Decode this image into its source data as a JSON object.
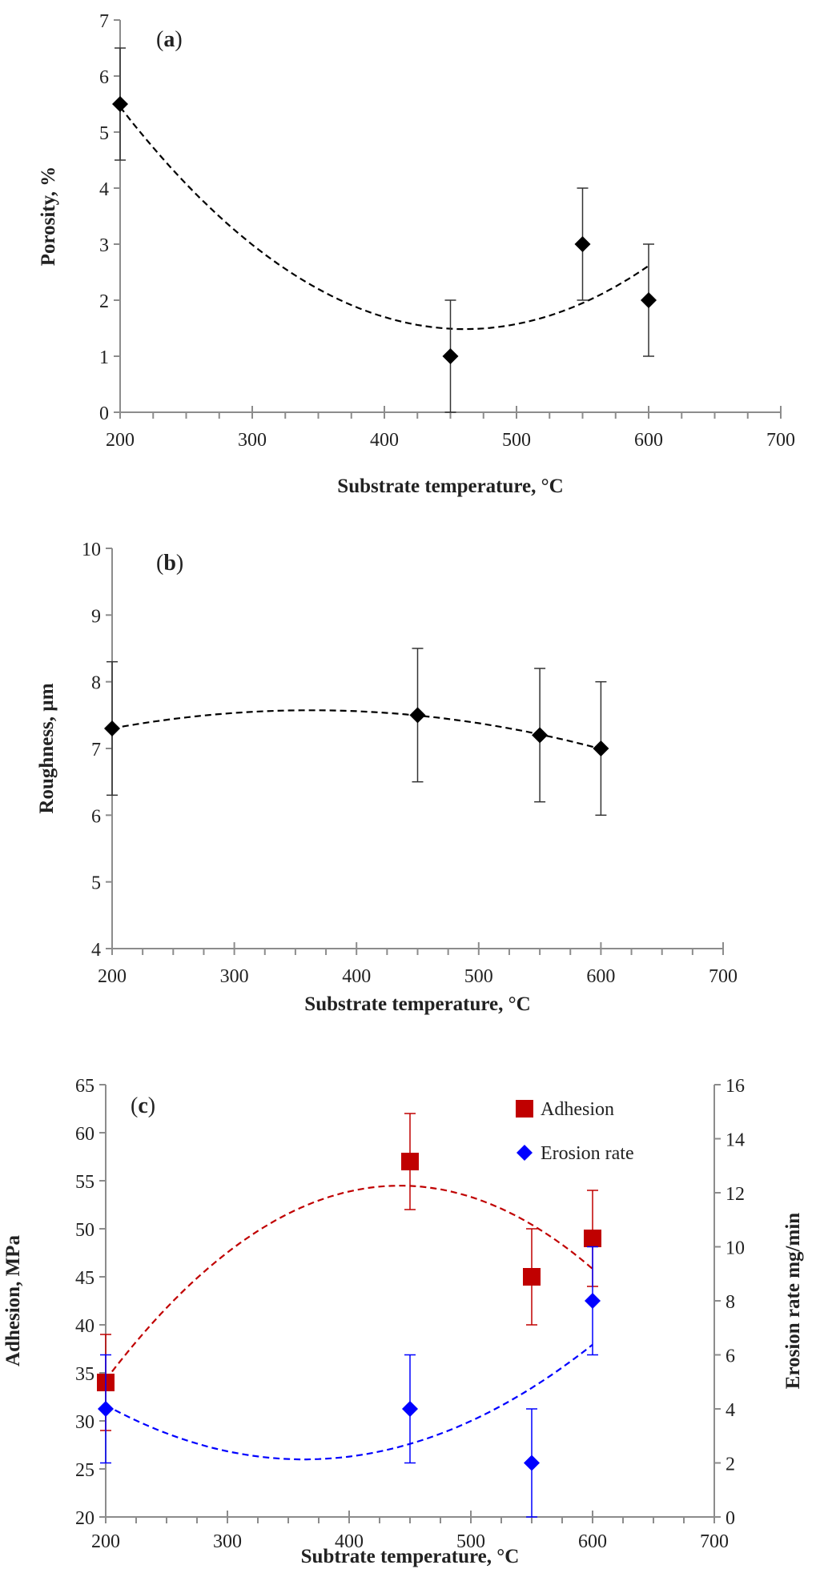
{
  "chart_data": [
    {
      "type": "scatter",
      "panel_label": "(a)",
      "panel_letter": "a",
      "xlabel": "Substrate temperature, °C",
      "ylabel": "Porosity, %",
      "xlim": [
        200,
        700
      ],
      "ylim": [
        0,
        7
      ],
      "x_ticks": [
        200,
        300,
        400,
        500,
        600,
        700
      ],
      "y_ticks": [
        0,
        1,
        2,
        3,
        4,
        5,
        6,
        7
      ],
      "grid": false,
      "series": [
        {
          "x": [
            200,
            450,
            550,
            600
          ],
          "y": [
            5.5,
            1,
            3,
            2
          ],
          "error": [
            1,
            1,
            1,
            1
          ],
          "marker": "diamond",
          "color": "#000000",
          "trendline": {
            "kind": "polynomial-2",
            "color": "#000000",
            "range": [
              200,
              600
            ]
          }
        }
      ]
    },
    {
      "type": "scatter",
      "panel_label": "(b)",
      "panel_letter": "b",
      "xlabel": "Substrate temperature, °C",
      "ylabel": "Roughness, µm",
      "xlim": [
        200,
        700
      ],
      "ylim": [
        4,
        10
      ],
      "x_ticks": [
        200,
        300,
        400,
        500,
        600,
        700
      ],
      "y_ticks": [
        4,
        5,
        6,
        7,
        8,
        9,
        10
      ],
      "grid": false,
      "series": [
        {
          "x": [
            200,
            450,
            550,
            600
          ],
          "y": [
            7.3,
            7.5,
            7.2,
            7.0
          ],
          "error": [
            1,
            1,
            1,
            1
          ],
          "marker": "diamond",
          "color": "#000000",
          "trendline": {
            "kind": "polynomial-2",
            "color": "#000000",
            "range": [
              200,
              600
            ]
          }
        }
      ]
    },
    {
      "type": "scatter",
      "panel_label": "(c)",
      "panel_letter": "c",
      "xlabel": "Subtrate temperature, °C",
      "ylabel": "Adhesion, MPa",
      "ylabel_right": "Erosion rate mg/min",
      "xlim": [
        200,
        700
      ],
      "ylim": [
        20,
        65
      ],
      "ylim_right": [
        0,
        16
      ],
      "x_ticks": [
        200,
        300,
        400,
        500,
        600,
        700
      ],
      "y_ticks": [
        20,
        25,
        30,
        35,
        40,
        45,
        50,
        55,
        60,
        65
      ],
      "y_ticks_right": [
        0,
        2,
        4,
        6,
        8,
        10,
        12,
        14,
        16
      ],
      "grid": false,
      "legend": "top-right",
      "series": [
        {
          "name": "Adhesion",
          "axis": "left",
          "x": [
            200,
            450,
            550,
            600
          ],
          "y": [
            34,
            57,
            45,
            49
          ],
          "error": [
            5,
            5,
            5,
            5
          ],
          "marker": "square",
          "color": "#c00000",
          "trendline": {
            "kind": "polynomial-2",
            "color": "#c00000",
            "range": [
              200,
              600
            ]
          }
        },
        {
          "name": "Erosion rate",
          "axis": "right",
          "x": [
            200,
            450,
            550,
            600
          ],
          "y": [
            4,
            4,
            2,
            8
          ],
          "error": [
            2,
            2,
            2,
            2
          ],
          "marker": "diamond",
          "color": "#0000ff",
          "trendline": {
            "kind": "polynomial-2",
            "color": "#0000ff",
            "range": [
              200,
              600
            ]
          }
        }
      ]
    }
  ]
}
